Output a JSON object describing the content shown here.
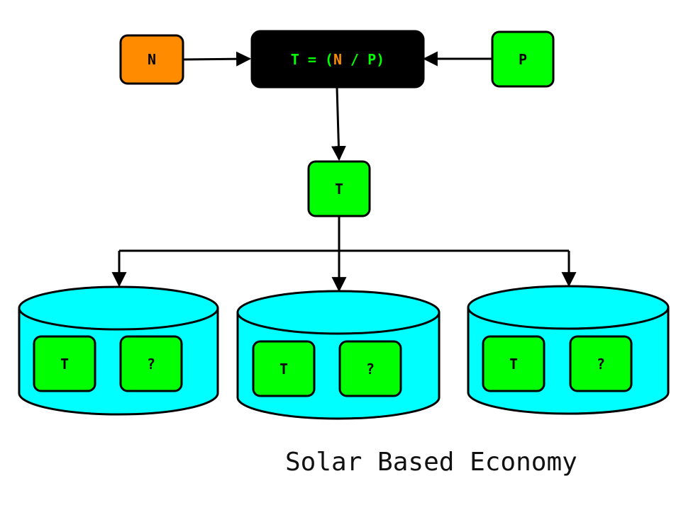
{
  "nodes": {
    "n": "N",
    "p": "P",
    "t": "T",
    "formula": {
      "lhs": "T = (",
      "n": "N",
      "rest": " / P)"
    }
  },
  "containers": [
    {
      "t": "T",
      "q": "?"
    },
    {
      "t": "T",
      "q": "?"
    },
    {
      "t": "T",
      "q": "?"
    }
  ],
  "caption": "Solar Based Economy",
  "colors": {
    "orange": "#ff8c00",
    "green": "#00ff00",
    "cyan": "#00ffff",
    "black": "#000000",
    "formula_text": "#00ff00",
    "formula_n": "#ff8c00"
  }
}
